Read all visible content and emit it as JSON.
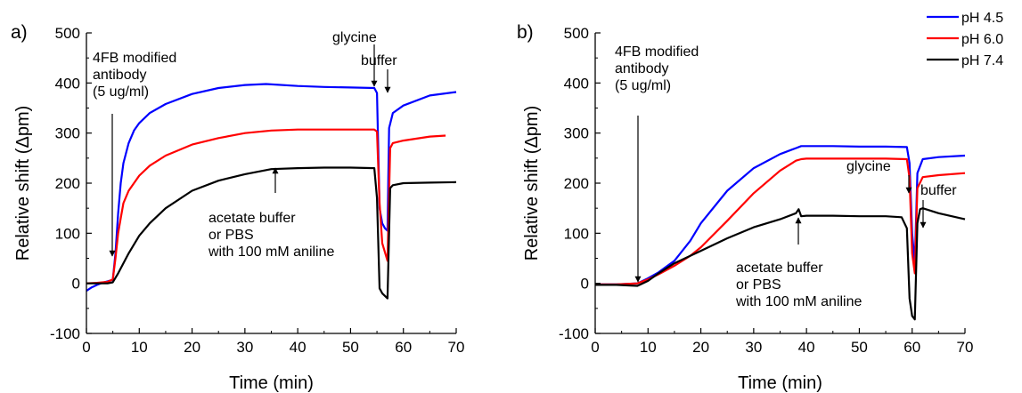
{
  "chart_data": [
    {
      "type": "line",
      "panel_label": "a)",
      "xlabel": "Time (min)",
      "ylabel": "Relative shift (Δpm)",
      "xlim": [
        0,
        70
      ],
      "ylim": [
        -100,
        500
      ],
      "xticks": [
        0,
        10,
        20,
        30,
        40,
        50,
        60,
        70
      ],
      "yticks": [
        -100,
        0,
        100,
        200,
        300,
        400,
        500
      ],
      "grid": false,
      "series": [
        {
          "name": "pH 4.5",
          "color": "#0000ff",
          "x": [
            0,
            1,
            2,
            3,
            4,
            5,
            5.5,
            6,
            6.5,
            7,
            8,
            9,
            10,
            12,
            15,
            20,
            25,
            30,
            34,
            40,
            45,
            50,
            54.5,
            55,
            55.5,
            56,
            56.5,
            57,
            57.3,
            58,
            60,
            65,
            70
          ],
          "y": [
            -15,
            -8,
            -3,
            1,
            4,
            7,
            60,
            140,
            200,
            240,
            280,
            305,
            320,
            340,
            358,
            378,
            390,
            396,
            398,
            394,
            392,
            391,
            390,
            380,
            150,
            120,
            110,
            105,
            310,
            340,
            355,
            375,
            382
          ]
        },
        {
          "name": "pH 6.0",
          "color": "#ff0000",
          "x": [
            0,
            2,
            4,
            5,
            5.5,
            6,
            6.5,
            7,
            8,
            10,
            12,
            15,
            20,
            25,
            30,
            35,
            40,
            45,
            50,
            54.5,
            55,
            55.5,
            56,
            57,
            57.5,
            58,
            60,
            65,
            68
          ],
          "y": [
            0,
            1,
            3,
            8,
            50,
            100,
            130,
            160,
            185,
            215,
            235,
            255,
            277,
            290,
            300,
            305,
            307,
            307,
            307,
            307,
            303,
            160,
            80,
            45,
            270,
            280,
            285,
            293,
            295
          ]
        },
        {
          "name": "pH 7.4",
          "color": "#000000",
          "x": [
            0,
            2,
            4,
            5,
            6,
            7,
            8,
            10,
            12,
            15,
            20,
            25,
            30,
            35,
            40,
            45,
            50,
            54.5,
            55,
            55.5,
            56,
            57,
            57.5,
            58,
            60,
            65,
            70
          ],
          "y": [
            0,
            0,
            0,
            2,
            20,
            40,
            60,
            95,
            120,
            150,
            185,
            205,
            218,
            228,
            230,
            231,
            231,
            230,
            170,
            -10,
            -20,
            -30,
            190,
            196,
            200,
            201,
            202
          ]
        }
      ],
      "annotations": [
        {
          "lines": [
            "4FB modified",
            "antibody",
            "(5 ug/ml)"
          ],
          "x": 5
        },
        {
          "lines": [
            "glycine"
          ],
          "x": 55
        },
        {
          "lines": [
            "buffer"
          ],
          "x": 57.3
        },
        {
          "lines": [
            "acetate buffer",
            "or PBS",
            "with 100 mM aniline"
          ],
          "x": 35
        }
      ]
    },
    {
      "type": "line",
      "panel_label": "b)",
      "xlabel": "Time (min)",
      "ylabel": "Relative shift (Δpm)",
      "xlim": [
        0,
        70
      ],
      "ylim": [
        -100,
        500
      ],
      "xticks": [
        0,
        10,
        20,
        30,
        40,
        50,
        60,
        70
      ],
      "yticks": [
        -100,
        0,
        100,
        200,
        300,
        400,
        500
      ],
      "grid": false,
      "legend": "top-right",
      "series": [
        {
          "name": "pH 4.5",
          "color": "#0000ff",
          "x": [
            0,
            4,
            8,
            10,
            12,
            15,
            18,
            20,
            25,
            30,
            35,
            38,
            39,
            40,
            45,
            50,
            55,
            59,
            59.5,
            60,
            60.5,
            61,
            62,
            65,
            70
          ],
          "y": [
            -2,
            -2,
            0,
            10,
            22,
            45,
            85,
            120,
            185,
            230,
            258,
            270,
            274,
            274,
            274,
            273,
            273,
            272,
            240,
            100,
            40,
            220,
            248,
            252,
            255
          ]
        },
        {
          "name": "pH 6.0",
          "color": "#ff0000",
          "x": [
            0,
            4,
            8,
            10,
            12,
            15,
            18,
            20,
            25,
            30,
            35,
            38,
            39,
            40,
            45,
            50,
            55,
            59,
            59.5,
            60,
            60.5,
            61,
            62,
            65,
            70
          ],
          "y": [
            -2,
            -2,
            0,
            8,
            18,
            35,
            55,
            72,
            125,
            180,
            225,
            245,
            248,
            249,
            249,
            249,
            249,
            248,
            210,
            60,
            20,
            190,
            212,
            216,
            220
          ]
        },
        {
          "name": "pH 7.4",
          "color": "#000000",
          "x": [
            0,
            4,
            8,
            10,
            12,
            15,
            20,
            25,
            30,
            35,
            38,
            38.5,
            39,
            40,
            45,
            50,
            55,
            58,
            59,
            59.5,
            60,
            60.5,
            61,
            61.5,
            62,
            65,
            70
          ],
          "y": [
            -3,
            -3,
            -5,
            5,
            20,
            40,
            65,
            90,
            112,
            128,
            140,
            148,
            134,
            135,
            135,
            134,
            134,
            132,
            110,
            -30,
            -65,
            -72,
            120,
            148,
            150,
            140,
            128
          ]
        }
      ],
      "annotations": [
        {
          "lines": [
            "4FB modified",
            "antibody",
            "(5 ug/ml)"
          ],
          "x": 8
        },
        {
          "lines": [
            "glycine"
          ],
          "x": 59.5
        },
        {
          "lines": [
            "buffer"
          ],
          "x": 62
        },
        {
          "lines": [
            "acetate buffer",
            "or PBS",
            "with 100 mM aniline"
          ],
          "x": 38.5
        }
      ]
    }
  ]
}
